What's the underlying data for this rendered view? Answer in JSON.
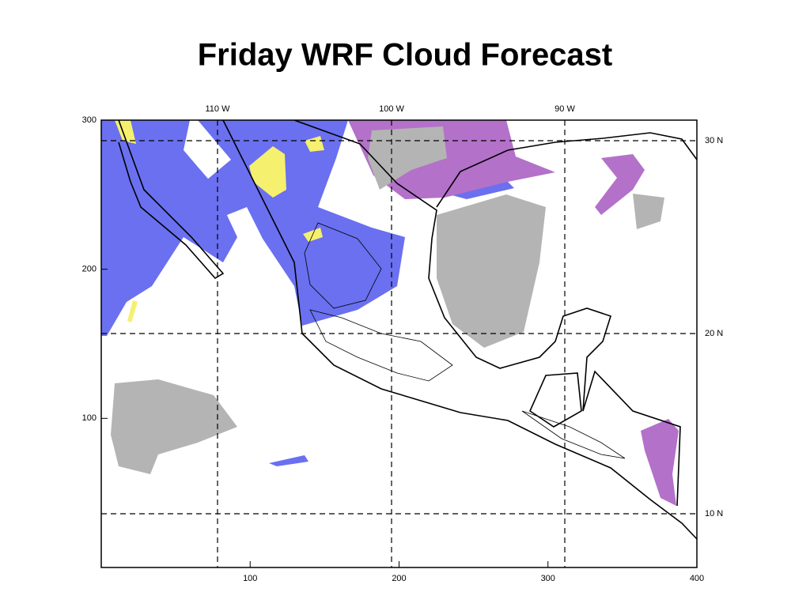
{
  "title": "Friday WRF Cloud Forecast",
  "map": {
    "xlim": [
      0,
      400
    ],
    "ylim": [
      0,
      300
    ],
    "xticks": [
      100,
      200,
      300,
      400
    ],
    "yticks": [
      100,
      200,
      300
    ],
    "lon_labels": [
      "110 W",
      "100 W",
      "90 W"
    ],
    "lat_labels": [
      "30 N",
      "20 N",
      "10 N"
    ]
  }
}
